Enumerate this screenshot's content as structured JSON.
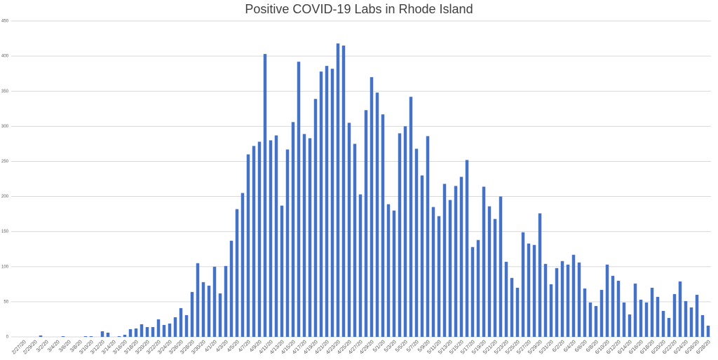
{
  "chart_data": {
    "type": "bar",
    "title": "Positive COVID-19 Labs in Rhode Island",
    "categories": [
      "2/27/20",
      null,
      "2/29/20",
      null,
      "3/2/20",
      null,
      "3/4/20",
      null,
      "3/6/20",
      null,
      "3/8/20",
      null,
      "3/10/20",
      null,
      "3/12/20",
      null,
      "3/14/20",
      null,
      "3/16/20",
      null,
      "3/18/20",
      null,
      "3/20/20",
      null,
      "3/22/20",
      null,
      "3/24/20",
      null,
      "3/26/20",
      null,
      "3/28/20",
      null,
      "3/30/20",
      null,
      "4/1/20",
      null,
      "4/3/20",
      null,
      "4/5/20",
      null,
      "4/7/20",
      null,
      "4/9/20",
      null,
      "4/11/20",
      null,
      "4/13/20",
      null,
      "4/15/20",
      null,
      "4/17/20",
      null,
      "4/19/20",
      null,
      "4/21/20",
      null,
      "4/23/20",
      null,
      "4/25/20",
      null,
      "4/27/20",
      null,
      "4/29/20",
      null,
      "5/1/20",
      null,
      "5/3/20",
      null,
      "5/5/20",
      null,
      "5/7/20",
      null,
      "5/9/20",
      null,
      "5/11/20",
      null,
      "5/13/20",
      null,
      "5/15/20",
      null,
      "5/17/20",
      null,
      "5/19/20",
      null,
      "5/21/20",
      null,
      "5/23/20",
      null,
      "5/25/20",
      null,
      "5/27/20",
      null,
      "5/29/20",
      null,
      "5/31/20",
      null,
      "6/2/20",
      null,
      "6/4/20",
      null,
      "6/6/20",
      null,
      "6/8/20",
      null,
      "6/10/20",
      null,
      "6/12/20",
      null,
      "6/14/20",
      null,
      "6/16/20",
      null,
      "6/18/20",
      null,
      "6/20/20",
      null,
      "6/22/20",
      null,
      "6/24/20",
      null,
      "6/26/20",
      null,
      "6/28/20"
    ],
    "values": [
      0,
      0,
      0,
      2,
      0,
      0,
      0,
      1,
      0,
      0,
      0,
      1,
      1,
      0,
      8,
      6,
      0,
      1,
      3,
      11,
      12,
      18,
      14,
      14,
      25,
      17,
      19,
      28,
      41,
      31,
      64,
      105,
      78,
      73,
      100,
      62,
      101,
      137,
      182,
      205,
      260,
      272,
      278,
      403,
      280,
      287,
      187,
      267,
      306,
      392,
      289,
      283,
      339,
      378,
      386,
      382,
      418,
      415,
      305,
      275,
      203,
      323,
      370,
      348,
      317,
      189,
      180,
      290,
      300,
      342,
      268,
      230,
      286,
      185,
      172,
      218,
      195,
      215,
      228,
      252,
      128,
      138,
      214,
      186,
      168,
      200,
      107,
      84,
      70,
      149,
      133,
      131,
      176,
      104,
      75,
      98,
      108,
      103,
      117,
      106,
      69,
      49,
      44,
      67,
      103,
      87,
      80,
      49,
      32,
      76,
      53,
      49,
      70,
      57,
      37,
      27,
      61,
      79,
      51,
      42,
      60,
      31,
      16
    ],
    "color": "#4472c4",
    "ylim": [
      0,
      450
    ],
    "yticks": [
      0,
      50,
      100,
      150,
      200,
      250,
      300,
      350,
      400,
      450
    ],
    "grid": true
  }
}
